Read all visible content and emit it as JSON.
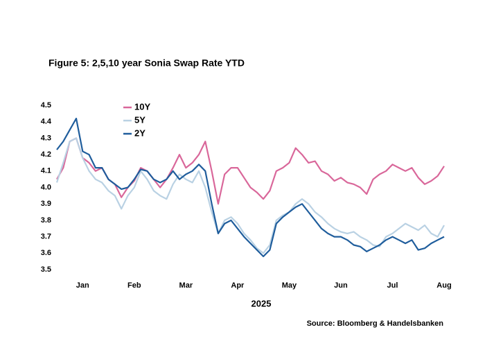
{
  "chart_data": {
    "type": "line",
    "title": "Figure 5: 2,5,10 year Sonia Swap Rate YTD",
    "xlabel": "2025",
    "source": "Source: Bloomberg & Handelsbanken",
    "categories": [
      null,
      null,
      null,
      null,
      "Jan",
      null,
      null,
      null,
      null,
      null,
      null,
      null,
      "Feb",
      null,
      null,
      null,
      null,
      null,
      null,
      null,
      "Mar",
      null,
      null,
      null,
      null,
      null,
      null,
      null,
      "Apr",
      null,
      null,
      null,
      null,
      null,
      null,
      null,
      "May",
      null,
      null,
      null,
      null,
      null,
      null,
      null,
      "Jun",
      null,
      null,
      null,
      null,
      null,
      null,
      null,
      "Jul",
      null,
      null,
      null,
      null,
      null,
      null,
      null,
      "Aug"
    ],
    "series": [
      {
        "name": "10Y",
        "color": "#d9679a",
        "values": [
          4.05,
          4.12,
          4.28,
          4.3,
          4.18,
          4.15,
          4.1,
          4.12,
          4.05,
          4.02,
          3.94,
          4.0,
          4.04,
          4.12,
          4.1,
          4.05,
          4.0,
          4.05,
          4.12,
          4.2,
          4.12,
          4.15,
          4.2,
          4.28,
          4.1,
          3.9,
          4.08,
          4.12,
          4.12,
          4.06,
          4.0,
          3.97,
          3.93,
          3.98,
          4.1,
          4.12,
          4.15,
          4.24,
          4.2,
          4.15,
          4.16,
          4.1,
          4.08,
          4.04,
          4.06,
          4.03,
          4.02,
          4.0,
          3.96,
          4.05,
          4.08,
          4.1,
          4.14,
          4.12,
          4.1,
          4.12,
          4.06,
          4.02,
          4.04,
          4.07,
          4.13
        ]
      },
      {
        "name": "5Y",
        "color": "#b9d1e3",
        "values": [
          4.03,
          4.15,
          4.28,
          4.3,
          4.18,
          4.1,
          4.05,
          4.03,
          3.98,
          3.95,
          3.87,
          3.95,
          4.0,
          4.1,
          4.05,
          3.98,
          3.95,
          3.93,
          4.02,
          4.08,
          4.05,
          4.03,
          4.1,
          4.0,
          3.85,
          3.72,
          3.8,
          3.82,
          3.78,
          3.72,
          3.68,
          3.63,
          3.6,
          3.65,
          3.8,
          3.83,
          3.85,
          3.9,
          3.93,
          3.9,
          3.85,
          3.82,
          3.78,
          3.75,
          3.73,
          3.72,
          3.73,
          3.7,
          3.68,
          3.65,
          3.64,
          3.7,
          3.72,
          3.75,
          3.78,
          3.76,
          3.74,
          3.77,
          3.72,
          3.7,
          3.77
        ]
      },
      {
        "name": "2Y",
        "color": "#1f5d9c",
        "values": [
          4.23,
          4.28,
          4.35,
          4.42,
          4.22,
          4.2,
          4.12,
          4.12,
          4.05,
          4.02,
          3.99,
          4.0,
          4.05,
          4.11,
          4.1,
          4.05,
          4.03,
          4.05,
          4.1,
          4.05,
          4.08,
          4.1,
          4.14,
          4.1,
          3.9,
          3.72,
          3.78,
          3.8,
          3.75,
          3.7,
          3.66,
          3.62,
          3.58,
          3.62,
          3.78,
          3.82,
          3.85,
          3.88,
          3.9,
          3.85,
          3.8,
          3.75,
          3.72,
          3.7,
          3.7,
          3.68,
          3.65,
          3.64,
          3.61,
          3.63,
          3.65,
          3.68,
          3.7,
          3.68,
          3.66,
          3.68,
          3.62,
          3.63,
          3.66,
          3.68,
          3.7
        ]
      }
    ],
    "ylim": [
      3.5,
      4.5
    ],
    "yticks": [
      3.5,
      3.6,
      3.7,
      3.8,
      3.9,
      {
        "value": 4,
        "label": "4.0"
      },
      4.1,
      4.2,
      4.3,
      4.4,
      4.5
    ],
    "grid": false,
    "legend": "upper left"
  }
}
